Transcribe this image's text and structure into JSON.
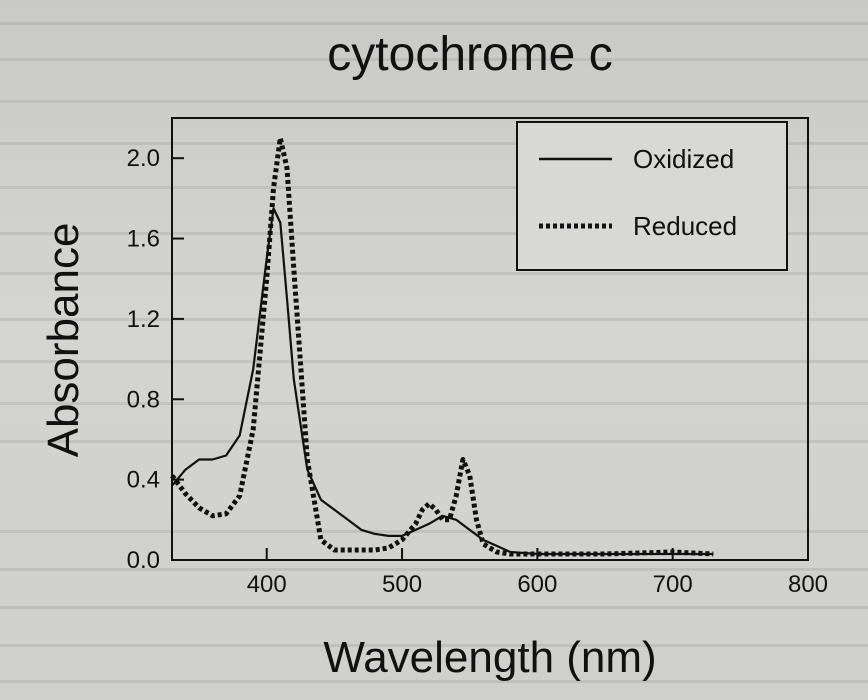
{
  "chart_data": {
    "type": "line",
    "title": "cytochrome c",
    "xlabel": "Wavelength (nm)",
    "ylabel": "Absorbance",
    "xlim": [
      330,
      800
    ],
    "ylim": [
      0.0,
      2.2
    ],
    "xticks": [
      "400",
      "500",
      "600",
      "700",
      "800"
    ],
    "xtick_values": [
      400,
      500,
      600,
      700,
      800
    ],
    "yticks": [
      "0.0",
      "0.4",
      "0.8",
      "1.2",
      "1.6",
      "2.0"
    ],
    "ytick_values": [
      0.0,
      0.4,
      0.8,
      1.2,
      1.6,
      2.0
    ],
    "grid": false,
    "legend_position": "top-right",
    "series": [
      {
        "name": "Oxidized",
        "style": "solid",
        "color": "#111111",
        "x": [
          330,
          340,
          350,
          360,
          370,
          380,
          390,
          400,
          405,
          410,
          415,
          420,
          430,
          440,
          450,
          460,
          470,
          480,
          490,
          500,
          510,
          520,
          530,
          540,
          550,
          560,
          570,
          580,
          600,
          650,
          700,
          730
        ],
        "y": [
          0.37,
          0.45,
          0.5,
          0.5,
          0.52,
          0.62,
          0.95,
          1.5,
          1.75,
          1.68,
          1.3,
          0.9,
          0.45,
          0.3,
          0.25,
          0.2,
          0.15,
          0.13,
          0.12,
          0.12,
          0.15,
          0.18,
          0.22,
          0.2,
          0.15,
          0.1,
          0.07,
          0.04,
          0.03,
          0.03,
          0.03,
          0.03
        ]
      },
      {
        "name": "Reduced",
        "style": "dotted",
        "color": "#111111",
        "x": [
          330,
          340,
          350,
          360,
          370,
          380,
          390,
          400,
          405,
          410,
          415,
          420,
          430,
          440,
          450,
          460,
          470,
          480,
          490,
          500,
          510,
          515,
          520,
          525,
          530,
          535,
          540,
          545,
          550,
          555,
          560,
          570,
          580,
          600,
          650,
          700,
          730
        ],
        "y": [
          0.42,
          0.33,
          0.26,
          0.22,
          0.23,
          0.32,
          0.65,
          1.4,
          1.85,
          2.1,
          1.95,
          1.45,
          0.5,
          0.1,
          0.05,
          0.05,
          0.05,
          0.05,
          0.06,
          0.1,
          0.18,
          0.25,
          0.28,
          0.25,
          0.2,
          0.2,
          0.32,
          0.5,
          0.42,
          0.2,
          0.08,
          0.04,
          0.03,
          0.03,
          0.03,
          0.04,
          0.03
        ]
      }
    ]
  }
}
